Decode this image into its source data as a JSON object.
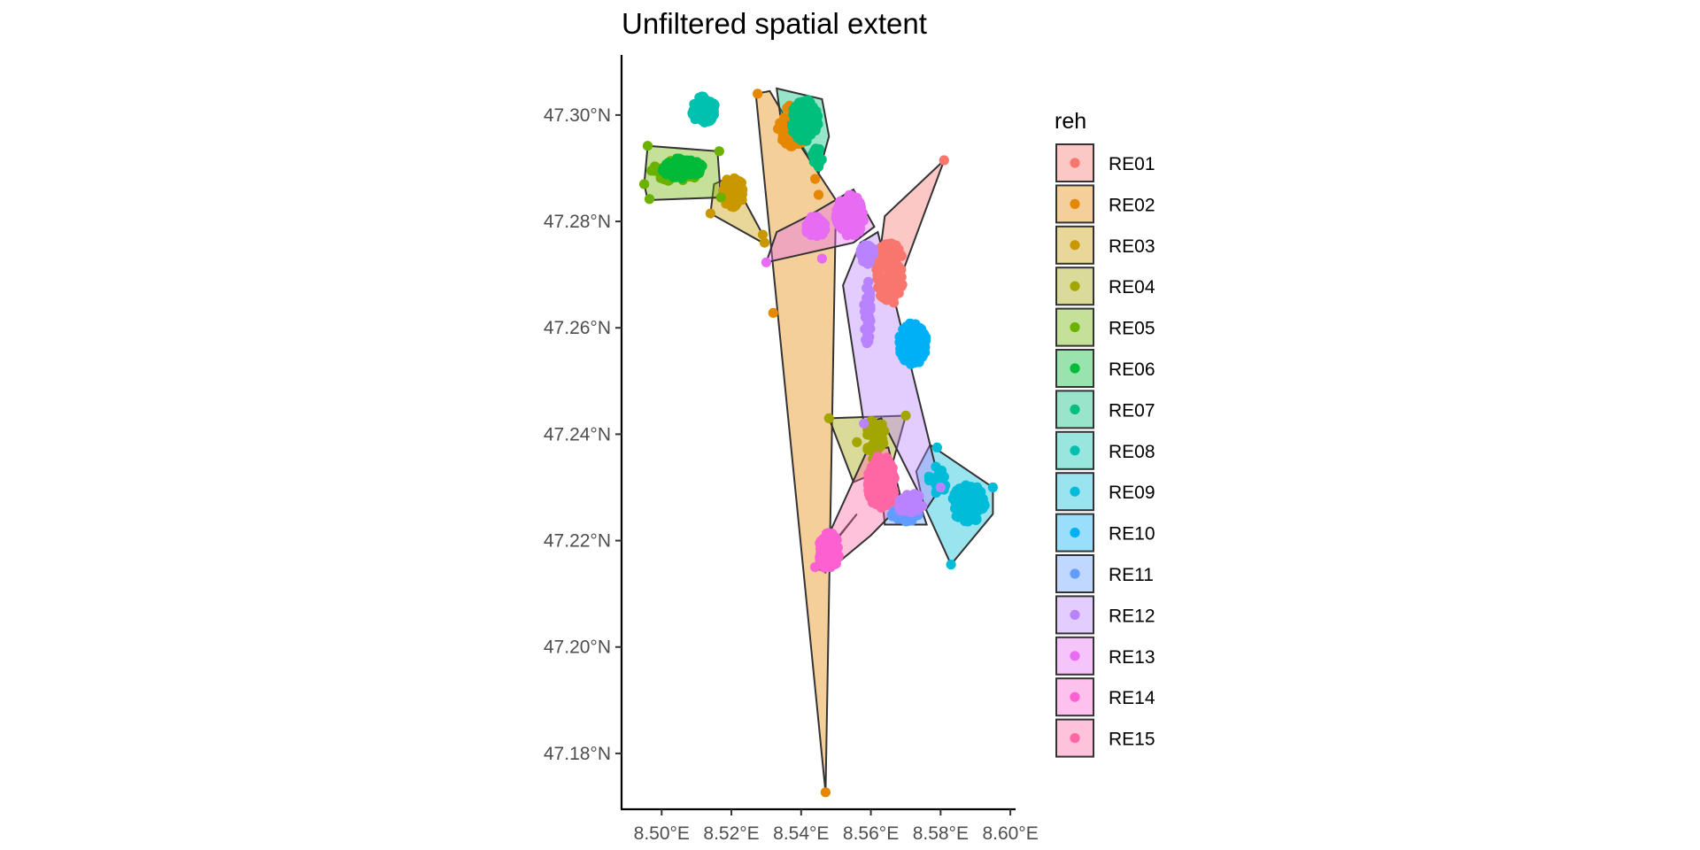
{
  "chart_data": {
    "type": "scatter",
    "title": "Unfiltered spatial extent",
    "xlabel": "",
    "ylabel": "",
    "xlim": [
      8.4885,
      8.6015
    ],
    "ylim": [
      47.1695,
      47.3113
    ],
    "x_ticks": [
      8.5,
      8.52,
      8.54,
      8.56,
      8.58,
      8.6
    ],
    "x_tick_labels": [
      "8.50°E",
      "8.52°E",
      "8.54°E",
      "8.56°E",
      "8.58°E",
      "8.60°E"
    ],
    "y_ticks": [
      47.18,
      47.2,
      47.22,
      47.24,
      47.26,
      47.28,
      47.3
    ],
    "y_tick_labels": [
      "47.18°N",
      "47.20°N",
      "47.22°N",
      "47.24°N",
      "47.26°N",
      "47.28°N",
      "47.30°N"
    ],
    "grid": false,
    "legend": {
      "title": "reh",
      "position": "right"
    },
    "series": [
      {
        "name": "RE01",
        "color": "#F8766D",
        "hull": [
          [
            8.581,
            47.2915
          ],
          [
            8.566,
            47.265
          ],
          [
            8.563,
            47.276
          ],
          [
            8.564,
            47.281
          ]
        ],
        "clusters": [
          {
            "cx": 8.5655,
            "cy": 47.2705,
            "rx": 0.004,
            "ry": 0.006,
            "n": 110
          }
        ],
        "outliers": [
          [
            8.581,
            47.2915
          ]
        ]
      },
      {
        "name": "RE02",
        "color": "#E58700",
        "hull": [
          [
            8.527,
            47.304
          ],
          [
            8.547,
            47.1727
          ],
          [
            8.55,
            47.284
          ],
          [
            8.545,
            47.289
          ],
          [
            8.531,
            47.3045
          ]
        ],
        "clusters": [
          {
            "cx": 8.538,
            "cy": 47.298,
            "rx": 0.005,
            "ry": 0.004,
            "n": 45
          }
        ],
        "outliers": [
          [
            8.547,
            47.1727
          ],
          [
            8.532,
            47.2628
          ],
          [
            8.545,
            47.285
          ],
          [
            8.544,
            47.288
          ],
          [
            8.5275,
            47.304
          ]
        ]
      },
      {
        "name": "RE03",
        "color": "#C99800",
        "hull": [
          [
            8.514,
            47.2815
          ],
          [
            8.5295,
            47.2758
          ],
          [
            8.529,
            47.2775
          ],
          [
            8.52,
            47.2885
          ],
          [
            8.515,
            47.287
          ]
        ],
        "clusters": [
          {
            "cx": 8.5205,
            "cy": 47.2855,
            "rx": 0.003,
            "ry": 0.003,
            "n": 70
          }
        ],
        "outliers": [
          [
            8.514,
            47.2815
          ],
          [
            8.5295,
            47.276
          ],
          [
            8.529,
            47.2775
          ]
        ]
      },
      {
        "name": "RE04",
        "color": "#A3A500",
        "hull": [
          [
            8.548,
            47.243
          ],
          [
            8.57,
            47.2435
          ],
          [
            8.566,
            47.234
          ],
          [
            8.555,
            47.231
          ]
        ],
        "clusters": [
          {
            "cx": 8.5615,
            "cy": 47.239,
            "rx": 0.003,
            "ry": 0.004,
            "n": 40
          }
        ],
        "outliers": [
          [
            8.548,
            47.243
          ],
          [
            8.57,
            47.2435
          ],
          [
            8.556,
            47.2385
          ]
        ]
      },
      {
        "name": "RE05",
        "color": "#6BB100",
        "hull": [
          [
            8.495,
            47.287
          ],
          [
            8.496,
            47.2942
          ],
          [
            8.516,
            47.2932
          ],
          [
            8.517,
            47.2845
          ],
          [
            8.496,
            47.284
          ]
        ],
        "clusters": [
          {
            "cx": 8.504,
            "cy": 47.2895,
            "rx": 0.007,
            "ry": 0.002,
            "n": 55
          }
        ],
        "outliers": [
          [
            8.496,
            47.2942
          ],
          [
            8.495,
            47.287
          ],
          [
            8.4965,
            47.2842
          ],
          [
            8.5165,
            47.2932
          ],
          [
            8.517,
            47.2845
          ]
        ]
      },
      {
        "name": "RE06",
        "color": "#00BA38",
        "hull": [],
        "clusters": [
          {
            "cx": 8.506,
            "cy": 47.29,
            "rx": 0.006,
            "ry": 0.002,
            "n": 95
          }
        ],
        "outliers": []
      },
      {
        "name": "RE07",
        "color": "#00BF7D",
        "hull": [
          [
            8.533,
            47.305
          ],
          [
            8.546,
            47.303
          ],
          [
            8.548,
            47.296
          ],
          [
            8.545,
            47.289
          ],
          [
            8.534,
            47.3
          ]
        ],
        "clusters": [
          {
            "cx": 8.541,
            "cy": 47.299,
            "rx": 0.004,
            "ry": 0.004,
            "n": 120
          },
          {
            "cx": 8.5445,
            "cy": 47.292,
            "rx": 0.0015,
            "ry": 0.002,
            "n": 25
          }
        ],
        "outliers": []
      },
      {
        "name": "RE08",
        "color": "#00C0AF",
        "hull": [],
        "clusters": [
          {
            "cx": 8.512,
            "cy": 47.301,
            "rx": 0.0035,
            "ry": 0.0025,
            "n": 100
          }
        ],
        "outliers": []
      },
      {
        "name": "RE09",
        "color": "#00BCD8",
        "hull": [
          [
            8.577,
            47.238
          ],
          [
            8.595,
            47.23
          ],
          [
            8.595,
            47.225
          ],
          [
            8.583,
            47.2155
          ],
          [
            8.575,
            47.227
          ],
          [
            8.573,
            47.233
          ]
        ],
        "clusters": [
          {
            "cx": 8.588,
            "cy": 47.227,
            "rx": 0.005,
            "ry": 0.0035,
            "n": 150
          },
          {
            "cx": 8.579,
            "cy": 47.231,
            "rx": 0.0025,
            "ry": 0.003,
            "n": 25
          }
        ],
        "outliers": [
          [
            8.583,
            47.2155
          ],
          [
            8.595,
            47.23
          ],
          [
            8.579,
            47.2375
          ]
        ]
      },
      {
        "name": "RE10",
        "color": "#00B0F6",
        "hull": [],
        "clusters": [
          {
            "cx": 8.572,
            "cy": 47.257,
            "rx": 0.004,
            "ry": 0.004,
            "n": 150
          }
        ],
        "outliers": []
      },
      {
        "name": "RE11",
        "color": "#619CFF",
        "hull": [
          [
            8.563,
            47.23
          ],
          [
            8.574,
            47.227
          ],
          [
            8.576,
            47.223
          ],
          [
            8.564,
            47.223
          ]
        ],
        "clusters": [
          {
            "cx": 8.57,
            "cy": 47.225,
            "rx": 0.004,
            "ry": 0.0015,
            "n": 60
          }
        ],
        "outliers": []
      },
      {
        "name": "RE12",
        "color": "#B983FF",
        "hull": [
          [
            8.557,
            47.276
          ],
          [
            8.562,
            47.278
          ],
          [
            8.58,
            47.23
          ],
          [
            8.576,
            47.226
          ],
          [
            8.563,
            47.243
          ],
          [
            8.558,
            47.242
          ],
          [
            8.552,
            47.268
          ]
        ],
        "clusters": [
          {
            "cx": 8.559,
            "cy": 47.274,
            "rx": 0.002,
            "ry": 0.002,
            "n": 30
          },
          {
            "cx": 8.559,
            "cy": 47.263,
            "rx": 0.001,
            "ry": 0.006,
            "n": 35
          },
          {
            "cx": 8.571,
            "cy": 47.227,
            "rx": 0.004,
            "ry": 0.002,
            "n": 40
          }
        ],
        "outliers": [
          [
            8.558,
            47.242
          ],
          [
            8.58,
            47.23
          ]
        ]
      },
      {
        "name": "RE13",
        "color": "#E76BF3",
        "hull": [
          [
            8.53,
            47.2723
          ],
          [
            8.555,
            47.276
          ],
          [
            8.561,
            47.279
          ],
          [
            8.555,
            47.286
          ],
          [
            8.542,
            47.281
          ],
          [
            8.533,
            47.278
          ]
        ],
        "clusters": [
          {
            "cx": 8.554,
            "cy": 47.281,
            "rx": 0.004,
            "ry": 0.004,
            "n": 130
          },
          {
            "cx": 8.544,
            "cy": 47.279,
            "rx": 0.003,
            "ry": 0.002,
            "n": 50
          }
        ],
        "outliers": [
          [
            8.53,
            47.2723
          ],
          [
            8.546,
            47.273
          ]
        ]
      },
      {
        "name": "RE14",
        "color": "#FD61D1",
        "hull": [
          [
            8.547,
            47.214
          ],
          [
            8.551,
            47.221
          ],
          [
            8.556,
            47.225
          ],
          [
            8.544,
            47.215
          ]
        ],
        "clusters": [
          {
            "cx": 8.548,
            "cy": 47.218,
            "rx": 0.003,
            "ry": 0.0035,
            "n": 80
          }
        ],
        "outliers": [
          [
            8.544,
            47.215
          ]
        ]
      },
      {
        "name": "RE15",
        "color": "#FF67A4",
        "hull": [
          [
            8.544,
            47.2155
          ],
          [
            8.559,
            47.237
          ],
          [
            8.565,
            47.2375
          ],
          [
            8.569,
            47.227
          ],
          [
            8.56,
            47.221
          ],
          [
            8.549,
            47.215
          ]
        ],
        "clusters": [
          {
            "cx": 8.563,
            "cy": 47.231,
            "rx": 0.004,
            "ry": 0.005,
            "n": 160
          }
        ],
        "outliers": []
      }
    ]
  }
}
